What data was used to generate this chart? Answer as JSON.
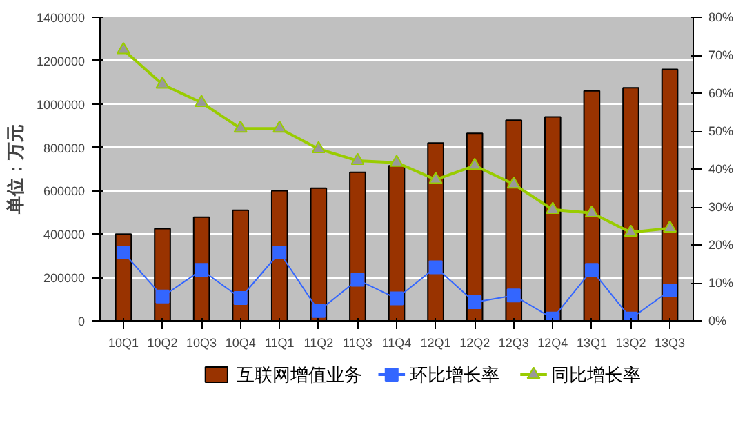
{
  "chart_data": {
    "type": "bar",
    "ylabel": "单位：万元",
    "categories": [
      "10Q1",
      "10Q2",
      "10Q3",
      "10Q4",
      "11Q1",
      "11Q2",
      "11Q3",
      "11Q4",
      "12Q1",
      "12Q2",
      "12Q3",
      "12Q4",
      "13Q1",
      "13Q2",
      "13Q3"
    ],
    "series": [
      {
        "name": "互联网增值业务",
        "color": "#993300",
        "values": [
          400000,
          425000,
          478000,
          510000,
          600000,
          612000,
          685000,
          715000,
          820000,
          865000,
          925000,
          940000,
          1060000,
          1075000,
          1160000
        ]
      },
      {
        "name": "环比增长率",
        "type": "line",
        "axis": "y2",
        "marker": "square",
        "color": "#3366ff",
        "values": [
          18,
          6.4,
          13.4,
          6,
          18,
          2.6,
          10.8,
          5.9,
          14.1,
          4.9,
          6.7,
          0.6,
          13.4,
          0.6,
          8
        ]
      },
      {
        "name": "同比增长率",
        "type": "line",
        "axis": "y2",
        "marker": "triangle",
        "color": "#99cc00",
        "values": [
          71.4,
          62.3,
          57.5,
          50.7,
          50.7,
          45.3,
          42.2,
          41.7,
          37.2,
          40.9,
          36,
          29.3,
          28.4,
          23.3,
          24.4
        ]
      }
    ],
    "ylim": [
      0,
      1400000
    ],
    "yticks": [
      0,
      200000,
      400000,
      600000,
      800000,
      1000000,
      1200000,
      1400000
    ],
    "y2lim": [
      0,
      80
    ],
    "y2ticks": [
      {
        "value": 0,
        "label": "0%"
      },
      {
        "value": 10,
        "label": "10%"
      },
      {
        "value": 20,
        "label": "20%"
      },
      {
        "value": 30,
        "label": "30%"
      },
      {
        "value": 40,
        "label": "40%"
      },
      {
        "value": 50,
        "label": "50%"
      },
      {
        "value": 60,
        "label": "60%"
      },
      {
        "value": 70,
        "label": "70%"
      },
      {
        "value": 80,
        "label": "80%"
      }
    ],
    "grid": "y",
    "legend": "bottom"
  }
}
